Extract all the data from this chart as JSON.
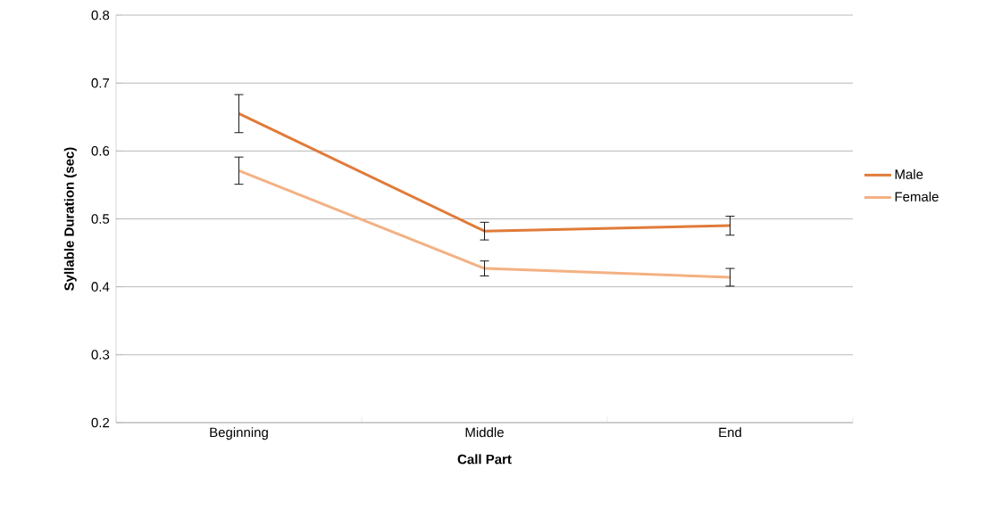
{
  "chart_data": {
    "type": "line",
    "xlabel": "Call Part",
    "ylabel": "Syllable Duration (sec)",
    "categories": [
      "Beginning",
      "Middle",
      "End"
    ],
    "series": [
      {
        "name": "Male",
        "color": "#e07b39",
        "values": [
          0.655,
          0.482,
          0.49
        ],
        "errors": [
          0.028,
          0.013,
          0.014
        ]
      },
      {
        "name": "Female",
        "color": "#f4b183",
        "values": [
          0.571,
          0.427,
          0.414
        ],
        "errors": [
          0.02,
          0.011,
          0.013
        ]
      }
    ],
    "ylim": [
      0.2,
      0.8
    ],
    "yticks": [
      0.2,
      0.3,
      0.4,
      0.5,
      0.6,
      0.7,
      0.8
    ],
    "grid": "y",
    "legend": "right",
    "marker": "none",
    "line_style": "solid"
  }
}
